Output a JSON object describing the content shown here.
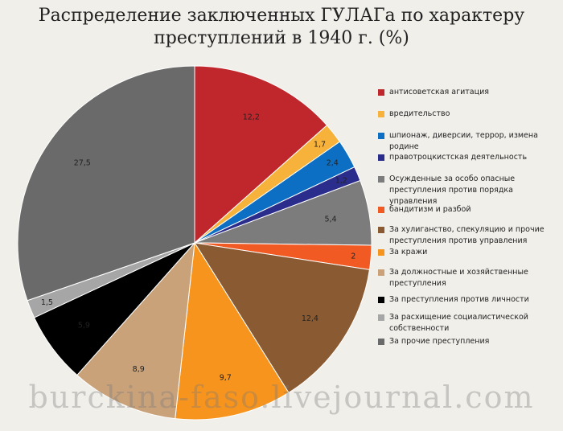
{
  "chart_data": {
    "type": "pie",
    "title": [
      "Распределение заключенных ГУЛАГа по характеру",
      "преступлений в 1940 г. (%)"
    ],
    "slices": [
      {
        "label": "антисоветская агитация",
        "value": 12.2,
        "value_label": "12,2",
        "color": "#c0272d"
      },
      {
        "label": "вредительство",
        "value": 1.7,
        "value_label": "1,7",
        "color": "#f6b23a"
      },
      {
        "label": "шпионаж, диверсии, террор, измена родине",
        "value": 2.4,
        "value_label": "2,4",
        "color": "#0d6fc3"
      },
      {
        "label": "правотроцкистская деятельность",
        "value": 1.2,
        "value_label": "1,2",
        "color": "#2b2d8c"
      },
      {
        "label": "Осужденные за особо опасные преступления против порядка управления",
        "value": 5.4,
        "value_label": "5,4",
        "color": "#7c7c7c"
      },
      {
        "label": "бандитизм и разбой",
        "value": 2,
        "value_label": "2",
        "color": "#f15a22"
      },
      {
        "label": "За хулиганство, спекуляцию и прочие преступления против управления",
        "value": 12.4,
        "value_label": "12,4",
        "color": "#8a5b32"
      },
      {
        "label": "За кражи",
        "value": 9.7,
        "value_label": "9,7",
        "color": "#f7941d"
      },
      {
        "label": "За должностные и хозяйственные преступления",
        "value": 8.9,
        "value_label": "8,9",
        "color": "#c9a27a"
      },
      {
        "label": "За преступления против личности",
        "value": 5.9,
        "value_label": "5,9",
        "color": "#000000"
      },
      {
        "label": "За расхищение социалистической собственности",
        "value": 1.5,
        "value_label": "1,5",
        "color": "#a6a6a6"
      },
      {
        "label": "За прочие преступления",
        "value": 27.5,
        "value_label": "27,5",
        "color": "#6a6a6a"
      }
    ],
    "legend_position": "right"
  },
  "watermark": "burckina-faso.livejournal.com"
}
